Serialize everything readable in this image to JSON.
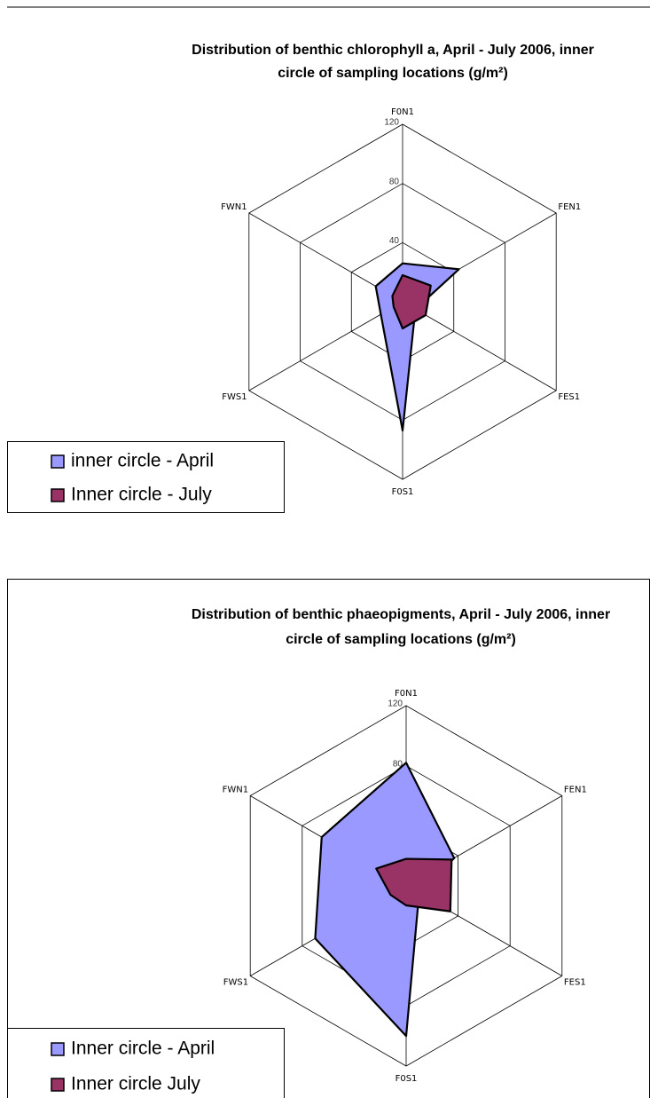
{
  "chart_data": [
    {
      "type": "radar",
      "title": [
        "Distribution of benthic chlorophyll a, April - July 2006, inner",
        "circle of sampling locations  (g/m²)"
      ],
      "categories": [
        "F0N1",
        "FEN1",
        "FES1",
        "F0S1",
        "FWS1",
        "FWN1"
      ],
      "series": [
        {
          "name": "inner circle - April",
          "color": "#9999ff",
          "values": [
            26,
            44,
            10,
            87,
            17,
            21
          ]
        },
        {
          "name": "Inner circle - July",
          "color": "#993366",
          "values": [
            18,
            22,
            18,
            18,
            7,
            8
          ]
        }
      ],
      "ylim": [
        0,
        120
      ],
      "yticks": [
        0,
        40,
        80,
        120
      ]
    },
    {
      "type": "radar",
      "title": [
        "Distribution of benthic phaeopigments, April - July 2006, inner",
        "circle of sampling locations (g/m²)"
      ],
      "categories": [
        "F0N1",
        "FEN1",
        "FES1",
        "F0S1",
        "FWS1",
        "FWN1"
      ],
      "series": [
        {
          "name": "Inner circle - April",
          "color": "#9999ff",
          "values": [
            82,
            37,
            10,
            100,
            70,
            65
          ]
        },
        {
          "name": "Inner circle July",
          "color": "#993366",
          "values": [
            18,
            35,
            34,
            13,
            12,
            23
          ]
        }
      ],
      "ylim": [
        0,
        120
      ],
      "yticks": [
        0,
        40,
        80,
        120
      ]
    }
  ]
}
